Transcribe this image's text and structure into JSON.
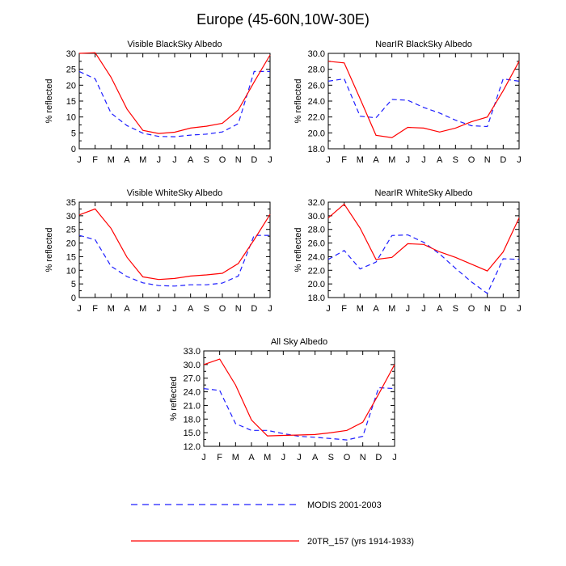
{
  "figure_title": "Europe (45-60N,10W-30E)",
  "colors": {
    "modis": "#1e1eff",
    "model": "#ff0000",
    "axis": "#000000"
  },
  "legend": {
    "modis_label": "MODIS 2001-2003",
    "model_label": "20TR_157 (yrs 1914-1933)"
  },
  "chart_data": [
    {
      "type": "line",
      "title": "Visible BlackSky Albedo",
      "ylabel": "% reflected",
      "categories": [
        "J",
        "F",
        "M",
        "A",
        "M",
        "J",
        "J",
        "A",
        "S",
        "O",
        "N",
        "D",
        "J"
      ],
      "ylim": [
        0,
        30
      ],
      "yticks": [
        0,
        5,
        10,
        15,
        20,
        25,
        30
      ],
      "ytick_labels": [
        "0",
        "5",
        "10",
        "15",
        "20",
        "25",
        "30"
      ],
      "series": [
        {
          "name": "MODIS 2001-2003",
          "values": [
            24.3,
            22.0,
            11.2,
            7.3,
            4.9,
            3.9,
            3.8,
            4.3,
            4.6,
            5.3,
            7.9,
            24.3,
            24.3
          ]
        },
        {
          "name": "20TR_157 (yrs 1914-1933)",
          "values": [
            30.0,
            30.2,
            22.5,
            12.5,
            5.8,
            4.8,
            5.2,
            6.5,
            7.1,
            8.0,
            12.2,
            21.0,
            29.5
          ]
        }
      ]
    },
    {
      "type": "line",
      "title": "NearIR BlackSky Albedo",
      "ylabel": "% reflected",
      "categories": [
        "J",
        "F",
        "M",
        "A",
        "M",
        "J",
        "J",
        "A",
        "S",
        "O",
        "N",
        "D",
        "J"
      ],
      "ylim": [
        18,
        30
      ],
      "yticks": [
        18,
        20,
        22,
        24,
        26,
        28,
        30
      ],
      "ytick_labels": [
        "18.0",
        "20.0",
        "22.0",
        "24.0",
        "26.0",
        "28.0",
        "30.0"
      ],
      "series": [
        {
          "name": "MODIS 2001-2003",
          "values": [
            26.5,
            26.8,
            22.1,
            21.9,
            24.2,
            24.1,
            23.2,
            22.5,
            21.6,
            20.9,
            20.8,
            26.8,
            26.5
          ]
        },
        {
          "name": "20TR_157 (yrs 1914-1933)",
          "values": [
            29.0,
            28.8,
            24.3,
            19.7,
            19.4,
            20.7,
            20.6,
            20.1,
            20.6,
            21.4,
            22.0,
            25.3,
            29.0
          ]
        }
      ]
    },
    {
      "type": "line",
      "title": "Visible WhiteSky Albedo",
      "ylabel": "% reflected",
      "categories": [
        "J",
        "F",
        "M",
        "A",
        "M",
        "J",
        "J",
        "A",
        "S",
        "O",
        "N",
        "D",
        "J"
      ],
      "ylim": [
        0,
        35
      ],
      "yticks": [
        0,
        5,
        10,
        15,
        20,
        25,
        30,
        35
      ],
      "ytick_labels": [
        "0",
        "5",
        "10",
        "15",
        "20",
        "25",
        "30",
        "35"
      ],
      "series": [
        {
          "name": "MODIS 2001-2003",
          "values": [
            22.8,
            21.2,
            11.5,
            7.7,
            5.4,
            4.4,
            4.2,
            4.7,
            4.7,
            5.3,
            7.9,
            22.8,
            22.8
          ]
        },
        {
          "name": "20TR_157 (yrs 1914-1933)",
          "values": [
            30.3,
            32.5,
            25.4,
            14.8,
            7.6,
            6.6,
            7.0,
            7.9,
            8.3,
            8.9,
            12.5,
            21.2,
            30.5
          ]
        }
      ]
    },
    {
      "type": "line",
      "title": "NearIR WhiteSky Albedo",
      "ylabel": "% reflected",
      "categories": [
        "J",
        "F",
        "M",
        "A",
        "M",
        "J",
        "J",
        "A",
        "S",
        "O",
        "N",
        "D",
        "J"
      ],
      "ylim": [
        18,
        32
      ],
      "yticks": [
        18,
        20,
        22,
        24,
        26,
        28,
        30,
        32
      ],
      "ytick_labels": [
        "18.0",
        "20.0",
        "22.0",
        "24.0",
        "26.0",
        "28.0",
        "30.0",
        "32.0"
      ],
      "series": [
        {
          "name": "MODIS 2001-2003",
          "values": [
            23.6,
            24.9,
            22.2,
            23.2,
            27.1,
            27.2,
            26.1,
            24.4,
            22.3,
            20.3,
            18.6,
            23.7,
            23.6
          ]
        },
        {
          "name": "20TR_157 (yrs 1914-1933)",
          "values": [
            29.7,
            31.7,
            28.2,
            23.6,
            23.9,
            25.9,
            25.8,
            24.7,
            23.9,
            22.9,
            21.9,
            24.7,
            29.7
          ]
        }
      ]
    },
    {
      "type": "line",
      "title": "All Sky Albedo",
      "ylabel": "% reflected",
      "categories": [
        "J",
        "F",
        "M",
        "A",
        "M",
        "J",
        "J",
        "A",
        "S",
        "O",
        "N",
        "D",
        "J"
      ],
      "ylim": [
        12,
        33
      ],
      "yticks": [
        12,
        15,
        18,
        21,
        24,
        27,
        30,
        33
      ],
      "ytick_labels": [
        "12.0",
        "15.0",
        "18.0",
        "21.0",
        "24.0",
        "27.0",
        "30.0",
        "33.0"
      ],
      "series": [
        {
          "name": "MODIS 2001-2003",
          "values": [
            24.7,
            24.3,
            17.0,
            15.5,
            15.5,
            14.8,
            14.2,
            14.0,
            13.7,
            13.4,
            14.2,
            24.9,
            24.7
          ]
        },
        {
          "name": "20TR_157 (yrs 1914-1933)",
          "values": [
            30.0,
            31.2,
            25.5,
            17.8,
            14.3,
            14.4,
            14.5,
            14.6,
            15.0,
            15.5,
            17.3,
            23.5,
            30.0
          ]
        }
      ]
    }
  ]
}
